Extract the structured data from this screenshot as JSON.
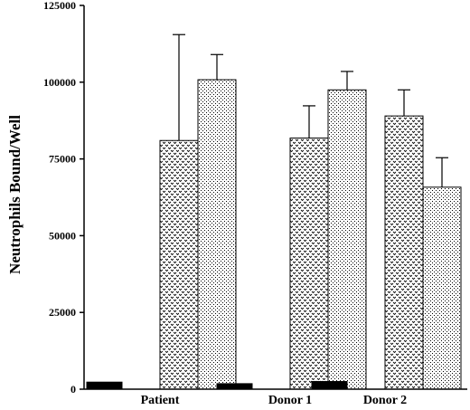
{
  "chart_data": {
    "type": "bar",
    "title": "",
    "xlabel": "",
    "ylabel": "Neutrophils Bound/Well",
    "ylim": [
      0,
      125000
    ],
    "yticks": [
      0,
      25000,
      50000,
      75000,
      100000,
      125000
    ],
    "ytick_labels": [
      "0",
      "25000",
      "50000",
      "75000",
      "100000",
      "125000"
    ],
    "categories": [
      "Patient",
      "Donor 1",
      "Donor 2"
    ],
    "grid": false,
    "legend": "none",
    "series": [
      {
        "pattern": "solid",
        "color": "#000000",
        "values": [
          2300,
          1800,
          2500
        ],
        "errors": [
          null,
          null,
          null
        ]
      },
      {
        "pattern": "zigzag",
        "color": "#000000",
        "values": [
          81000,
          81800,
          89000
        ],
        "errors": [
          34500,
          10500,
          8500
        ]
      },
      {
        "pattern": "dots",
        "color": "#000000",
        "values": [
          100800,
          97500,
          65800
        ],
        "errors": [
          8200,
          6000,
          9600
        ]
      }
    ]
  }
}
